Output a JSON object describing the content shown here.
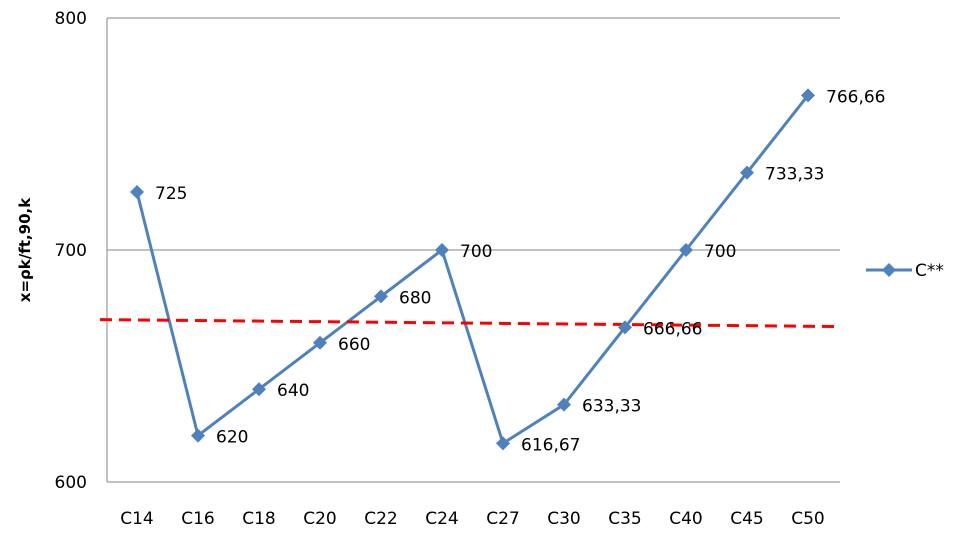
{
  "chart_data": {
    "type": "line",
    "title": "",
    "xlabel": "",
    "ylabel": "x=ρk/ft,90,k",
    "categories": [
      "C14",
      "C16",
      "C18",
      "C20",
      "C22",
      "C24",
      "C27",
      "C30",
      "C35",
      "C40",
      "C45",
      "C50"
    ],
    "series": [
      {
        "name": "C**",
        "values": [
          725,
          620,
          640,
          660,
          680,
          700,
          616.67,
          633.33,
          666.66,
          700,
          733.33,
          766.66
        ],
        "labels": [
          "725",
          "620",
          "640",
          "660",
          "680",
          "700",
          "616,67",
          "633,33",
          "666,66",
          "700",
          "733,33",
          "766,66"
        ],
        "color": "#4F81BD"
      }
    ],
    "reference_line": {
      "style": "dashed",
      "color": "#FF0000",
      "start_value": 670,
      "end_value": 667
    },
    "ylim": [
      600,
      800
    ],
    "yticks": [
      "600",
      "700",
      "800"
    ],
    "grid": "horizontal",
    "legend": "right"
  }
}
